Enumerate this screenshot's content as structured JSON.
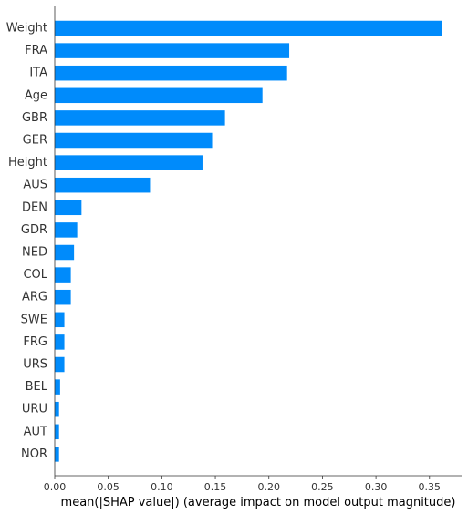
{
  "chart_data": {
    "type": "bar",
    "orientation": "horizontal",
    "categories": [
      "Weight",
      "FRA",
      "ITA",
      "Age",
      "GBR",
      "GER",
      "Height",
      "AUS",
      "DEN",
      "GDR",
      "NED",
      "COL",
      "ARG",
      "SWE",
      "FRG",
      "URS",
      "BEL",
      "URU",
      "AUT",
      "NOR"
    ],
    "values": [
      0.362,
      0.219,
      0.217,
      0.194,
      0.159,
      0.147,
      0.138,
      0.089,
      0.025,
      0.021,
      0.018,
      0.015,
      0.015,
      0.009,
      0.009,
      0.009,
      0.005,
      0.004,
      0.004,
      0.004
    ],
    "xlabel": "mean(|SHAP value|) (average impact on model output magnitude)",
    "xlim": [
      0,
      0.38
    ],
    "xticks": [
      0.0,
      0.05,
      0.1,
      0.15,
      0.2,
      0.25,
      0.3,
      0.35
    ],
    "xtick_labels": [
      "0.00",
      "0.05",
      "0.10",
      "0.15",
      "0.20",
      "0.25",
      "0.30",
      "0.35"
    ],
    "grid": false,
    "bar_color": "#008bfb",
    "axis_color": "#333333"
  }
}
